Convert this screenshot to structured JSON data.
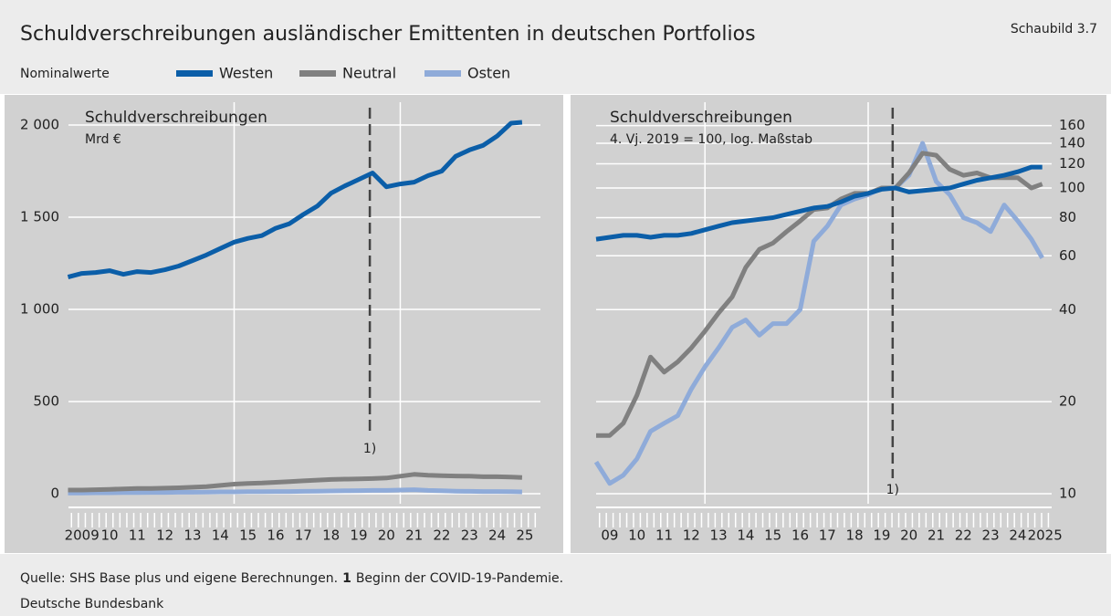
{
  "title": "Schuldverschreibungen ausländischer Emittenten in deutschen Portfolios",
  "figure_label": "Schaubild 3.7",
  "legend_label": "Nominalwerte",
  "chart_data": [
    {
      "type": "line",
      "title": "Schuldverschreibungen",
      "subtitle": "Mrd €",
      "x": [
        2009.0,
        2009.5,
        2010.0,
        2010.5,
        2011.0,
        2011.5,
        2012.0,
        2012.5,
        2013.0,
        2013.5,
        2014.0,
        2014.5,
        2015.0,
        2015.5,
        2016.0,
        2016.5,
        2017.0,
        2017.5,
        2018.0,
        2018.5,
        2019.0,
        2019.5,
        2020.0,
        2020.5,
        2021.0,
        2021.5,
        2022.0,
        2022.5,
        2023.0,
        2023.5,
        2024.0,
        2024.5,
        2025.0,
        2025.4
      ],
      "series": [
        {
          "name": "Westen",
          "color": "#0b5ea8",
          "values": [
            1175,
            1195,
            1200,
            1210,
            1190,
            1205,
            1200,
            1215,
            1235,
            1265,
            1295,
            1330,
            1365,
            1385,
            1400,
            1440,
            1465,
            1515,
            1560,
            1630,
            1670,
            1705,
            1740,
            1665,
            1680,
            1690,
            1725,
            1750,
            1830,
            1865,
            1890,
            1940,
            2010,
            2015
          ]
        },
        {
          "name": "Neutral",
          "color": "#808080",
          "values": [
            20,
            20,
            22,
            24,
            26,
            28,
            28,
            30,
            32,
            35,
            38,
            45,
            52,
            56,
            58,
            62,
            66,
            70,
            74,
            77,
            79,
            80,
            82,
            85,
            95,
            105,
            100,
            98,
            96,
            95,
            92,
            92,
            90,
            88
          ]
        },
        {
          "name": "Osten",
          "color": "#8fabd9",
          "values": [
            4,
            4,
            5,
            5,
            6,
            6,
            7,
            7,
            8,
            8,
            9,
            10,
            10,
            11,
            11,
            12,
            12,
            13,
            14,
            15,
            16,
            17,
            18,
            18,
            20,
            22,
            18,
            16,
            14,
            13,
            12,
            12,
            11,
            10
          ]
        }
      ],
      "xlim": [
        2009,
        2026
      ],
      "xticks": [
        {
          "value": 2009.5,
          "label": "2009"
        },
        {
          "value": 2010.5,
          "label": "10"
        },
        {
          "value": 2011.5,
          "label": "11"
        },
        {
          "value": 2012.5,
          "label": "12"
        },
        {
          "value": 2013.5,
          "label": "13"
        },
        {
          "value": 2014.5,
          "label": "14"
        },
        {
          "value": 2015.5,
          "label": "15"
        },
        {
          "value": 2016.5,
          "label": "16"
        },
        {
          "value": 2017.5,
          "label": "17"
        },
        {
          "value": 2018.5,
          "label": "18"
        },
        {
          "value": 2019.5,
          "label": "19"
        },
        {
          "value": 2020.5,
          "label": "20"
        },
        {
          "value": 2021.5,
          "label": "21"
        },
        {
          "value": 2022.5,
          "label": "22"
        },
        {
          "value": 2023.5,
          "label": "23"
        },
        {
          "value": 2024.5,
          "label": "24"
        },
        {
          "value": 2025.5,
          "label": "25"
        }
      ],
      "xgrid": [
        2015,
        2021
      ],
      "ylim": [
        0,
        2000
      ],
      "yticks": [
        0,
        500,
        {
          "value": 1000,
          "label": "1 000"
        },
        {
          "value": 1500,
          "label": "1 500"
        },
        {
          "value": 2000,
          "label": "2 000"
        }
      ],
      "grid": true,
      "log_scale": false,
      "annotations": [
        {
          "x": 2019.9,
          "label": "1)"
        }
      ]
    },
    {
      "type": "line",
      "title": "Schuldverschreibungen",
      "subtitle": "4. Vj. 2019 = 100, log. Maßstab",
      "x": [
        2009.0,
        2009.5,
        2010.0,
        2010.5,
        2011.0,
        2011.5,
        2012.0,
        2012.5,
        2013.0,
        2013.5,
        2014.0,
        2014.5,
        2015.0,
        2015.5,
        2016.0,
        2016.5,
        2017.0,
        2017.5,
        2018.0,
        2018.5,
        2019.0,
        2019.5,
        2020.0,
        2020.5,
        2021.0,
        2021.5,
        2022.0,
        2022.5,
        2023.0,
        2023.5,
        2024.0,
        2024.5,
        2025.0,
        2025.4
      ],
      "series": [
        {
          "name": "Westen",
          "color": "#0b5ea8",
          "values": [
            68,
            69,
            70,
            70,
            69,
            70,
            70,
            71,
            73,
            75,
            77,
            78,
            79,
            80,
            82,
            84,
            86,
            87,
            90,
            94,
            96,
            99,
            100,
            97,
            98,
            99,
            100,
            103,
            106,
            108,
            110,
            113,
            117,
            117
          ]
        },
        {
          "name": "Neutral",
          "color": "#808080",
          "values": [
            15.5,
            15.5,
            17,
            21,
            28,
            25,
            27,
            30,
            34,
            39,
            44,
            55,
            63,
            66,
            72,
            78,
            85,
            86,
            92,
            96,
            96,
            100,
            100,
            112,
            130,
            128,
            115,
            110,
            112,
            108,
            108,
            108,
            100,
            103
          ]
        },
        {
          "name": "Osten",
          "color": "#8fabd9",
          "values": [
            12.7,
            10.8,
            11.5,
            13,
            16,
            17,
            18,
            22,
            26,
            30,
            35,
            37,
            33,
            36,
            36,
            40,
            67,
            75,
            88,
            92,
            95,
            100,
            100,
            110,
            140,
            105,
            95,
            80,
            77,
            72,
            88,
            78,
            68,
            59
          ]
        }
      ],
      "xlim": [
        2009,
        2026
      ],
      "xticks": [
        {
          "value": 2009.5,
          "label": "09"
        },
        {
          "value": 2010.5,
          "label": "10"
        },
        {
          "value": 2011.5,
          "label": "11"
        },
        {
          "value": 2012.5,
          "label": "12"
        },
        {
          "value": 2013.5,
          "label": "13"
        },
        {
          "value": 2014.5,
          "label": "14"
        },
        {
          "value": 2015.5,
          "label": "15"
        },
        {
          "value": 2016.5,
          "label": "16"
        },
        {
          "value": 2017.5,
          "label": "17"
        },
        {
          "value": 2018.5,
          "label": "18"
        },
        {
          "value": 2019.5,
          "label": "19"
        },
        {
          "value": 2020.5,
          "label": "20"
        },
        {
          "value": 2021.5,
          "label": "21"
        },
        {
          "value": 2022.5,
          "label": "22"
        },
        {
          "value": 2023.5,
          "label": "23"
        },
        {
          "value": 2024.5,
          "label": "24"
        },
        {
          "value": 2025.5,
          "label": "2025"
        }
      ],
      "xgrid": [
        2013,
        2019
      ],
      "ylim": [
        10,
        160
      ],
      "yticks": [
        10,
        20,
        40,
        60,
        80,
        100,
        120,
        140,
        160
      ],
      "grid": true,
      "log_scale": true,
      "annotations": [
        {
          "x": 2019.9,
          "label": "1)"
        }
      ]
    }
  ],
  "footer": {
    "source": "Quelle: SHS Base plus und eigene Berechnungen.",
    "note_marker": "1",
    "note": "Beginn der COVID-19-Pandemie.",
    "publisher": "Deutsche Bundesbank"
  }
}
